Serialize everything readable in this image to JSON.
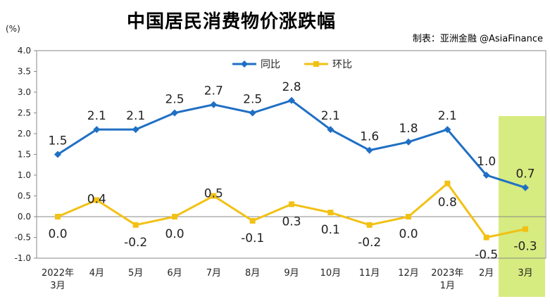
{
  "header": {
    "title": "中国居民消费物价涨跌幅",
    "source": "制表：亚洲金融 @AsiaFinance",
    "unit": "(%)"
  },
  "colors": {
    "yoy": "#1f6fc4",
    "mom": "#f2c114",
    "highlight": "#cfe86a"
  },
  "chart_data": {
    "type": "line",
    "title": "中国居民消费物价涨跌幅",
    "ylabel": "(%)",
    "ylim": [
      -1.0,
      4.0
    ],
    "yticks": [
      "4.0",
      "3.5",
      "3.0",
      "2.5",
      "2.0",
      "1.5",
      "1.0",
      "0.5",
      "0.0",
      "-0.5",
      "-1.0"
    ],
    "categories": [
      "2022年\n3月",
      "4月",
      "5月",
      "6月",
      "7月",
      "8月",
      "9月",
      "10月",
      "11月",
      "12月",
      "2023年\n1月",
      "2月",
      "3月"
    ],
    "legend": [
      "同比",
      "环比"
    ],
    "series": [
      {
        "name": "同比",
        "values": [
          1.5,
          2.1,
          2.1,
          2.5,
          2.7,
          2.5,
          2.8,
          2.1,
          1.6,
          1.8,
          2.1,
          1.0,
          0.7
        ],
        "labels": [
          "1.5",
          "2.1",
          "2.1",
          "2.5",
          "2.7",
          "2.5",
          "2.8",
          "2.1",
          "1.6",
          "1.8",
          "2.1",
          "1.0",
          "0.7"
        ]
      },
      {
        "name": "环比",
        "values": [
          0.0,
          0.4,
          -0.2,
          0.0,
          0.5,
          -0.1,
          0.3,
          0.1,
          -0.2,
          0.0,
          0.8,
          -0.5,
          -0.3
        ],
        "labels": [
          "0.0",
          "0.4",
          "-0.2",
          "0.0",
          "0.5",
          "-0.1",
          "0.3",
          "0.1",
          "-0.2",
          "0.0",
          "0.8",
          "-0.5",
          "-0.3"
        ]
      }
    ],
    "highlight_category": "3月",
    "grid": false
  }
}
